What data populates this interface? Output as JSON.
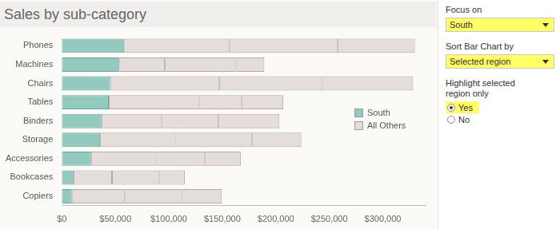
{
  "chart_data": {
    "type": "bar",
    "title": "Sales by sub-category",
    "orientation": "horizontal",
    "stacked": true,
    "grid": false,
    "legend": "right",
    "categories": [
      "Phones",
      "Machines",
      "Chairs",
      "Tables",
      "Binders",
      "Storage",
      "Accessories",
      "Bookcases",
      "Copiers"
    ],
    "series": [
      {
        "name": "South",
        "color": "#94c9c0",
        "values": [
          58304,
          53891,
          45176,
          43916,
          37030,
          35768,
          27277,
          10899,
          9299
        ]
      },
      {
        "name": "All Others",
        "color": "#e5ddda",
        "values": [
          98684,
          42444,
          101781,
          84755,
          55962,
          70533,
          61114,
          36005,
          49750
        ]
      },
      {
        "name": "All Others",
        "color": "#e5ddda",
        "values": [
          100615,
          66106,
          96248,
          39140,
          53498,
          71613,
          45033,
          43819,
          53219
        ]
      },
      {
        "name": "All Others",
        "color": "#e5ddda",
        "values": [
          72403,
          26797,
          85231,
          39154,
          56923,
          45930,
          33956,
          24157,
          37260
        ]
      }
    ],
    "xlim": [
      0,
      340000
    ],
    "xticks": [
      {
        "value": 0,
        "label": "$0"
      },
      {
        "value": 50000,
        "label": "$50,000"
      },
      {
        "value": 100000,
        "label": "$100,000"
      },
      {
        "value": 150000,
        "label": "$150,000"
      },
      {
        "value": 200000,
        "label": "$200,000"
      },
      {
        "value": 250000,
        "label": "$250,000"
      },
      {
        "value": 300000,
        "label": "$300,000"
      }
    ]
  },
  "controls": [
    {
      "type": "dropdown",
      "label": "Focus on",
      "value": "South",
      "highlight": true
    },
    {
      "type": "dropdown",
      "label": "Sort Bar Chart by",
      "value": "Selected region",
      "highlight": true
    },
    {
      "type": "radio",
      "label": "Highlight selected region only",
      "options": [
        "Yes",
        "No"
      ],
      "selected": "Yes",
      "highlight": true
    }
  ]
}
